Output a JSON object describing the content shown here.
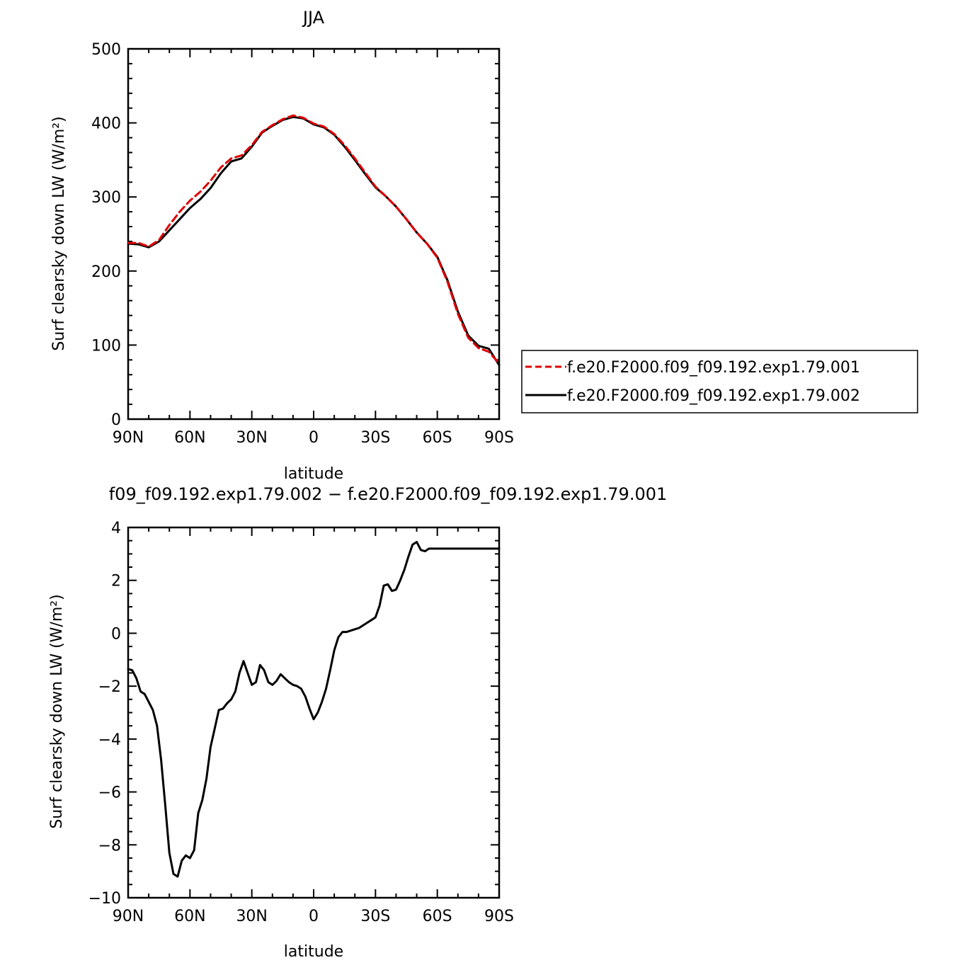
{
  "chart_data": [
    {
      "type": "line",
      "title": "JJA",
      "xlabel": "latitude",
      "ylabel": "Surf clearsky down LW (W/m²)",
      "xlim": [
        90,
        -90
      ],
      "ylim": [
        0,
        500
      ],
      "xticks": [
        90,
        60,
        30,
        0,
        -30,
        -60,
        -90
      ],
      "xtick_labels": [
        "90N",
        "60N",
        "30N",
        "0",
        "30S",
        "60S",
        "90S"
      ],
      "yticks": [
        0,
        100,
        200,
        300,
        400,
        500
      ],
      "ytick_labels": [
        "0",
        "100",
        "200",
        "300",
        "400",
        "500"
      ],
      "legend_position": "right",
      "series": [
        {
          "name": "f.e20.F2000.f09_f09.192.exp1.79.001",
          "color": "#e00000",
          "dash": "dashed",
          "x": [
            90,
            85,
            80,
            75,
            70,
            65,
            60,
            55,
            50,
            45,
            40,
            35,
            30,
            25,
            20,
            15,
            10,
            5,
            0,
            -5,
            -10,
            -15,
            -20,
            -25,
            -30,
            -35,
            -40,
            -45,
            -50,
            -55,
            -60,
            -65,
            -70,
            -75,
            -80,
            -85,
            -90
          ],
          "values": [
            238,
            238,
            233,
            242,
            262,
            280,
            295,
            307,
            322,
            340,
            352,
            356,
            370,
            388,
            397,
            405,
            410,
            407,
            399,
            395,
            385,
            370,
            352,
            333,
            314,
            301,
            287,
            270,
            252,
            237,
            218,
            185,
            142,
            110,
            96,
            91,
            75
          ]
        },
        {
          "name": "f.e20.F2000.f09_f09.192.exp1.79.002",
          "color": "#000000",
          "dash": "solid",
          "x": [
            90,
            85,
            80,
            75,
            70,
            65,
            60,
            55,
            50,
            45,
            40,
            35,
            30,
            25,
            20,
            15,
            10,
            5,
            0,
            -5,
            -10,
            -15,
            -20,
            -25,
            -30,
            -35,
            -40,
            -45,
            -50,
            -55,
            -60,
            -65,
            -70,
            -75,
            -80,
            -85,
            -90
          ],
          "values": [
            237,
            236,
            232,
            240,
            255,
            270,
            285,
            297,
            312,
            332,
            348,
            352,
            368,
            387,
            396,
            404,
            408,
            406,
            398,
            394,
            384,
            368,
            350,
            331,
            313,
            301,
            287,
            270,
            252,
            237,
            219,
            187,
            145,
            113,
            99,
            95,
            73
          ]
        }
      ]
    },
    {
      "type": "line",
      "title": "f09_f09.192.exp1.79.002 − f.e20.F2000.f09_f09.192.exp1.79.001",
      "xlabel": "latitude",
      "ylabel": "Surf clearsky down LW (W/m²)",
      "xlim": [
        90,
        -90
      ],
      "ylim": [
        -10,
        4
      ],
      "xticks": [
        90,
        60,
        30,
        0,
        -30,
        -60,
        -90
      ],
      "xtick_labels": [
        "90N",
        "60N",
        "30N",
        "0",
        "30S",
        "60S",
        "90S"
      ],
      "yticks": [
        -10,
        -8,
        -6,
        -4,
        -2,
        0,
        2,
        4
      ],
      "ytick_labels": [
        "−10",
        "−8",
        "−6",
        "−4",
        "−2",
        "0",
        "2",
        "4"
      ],
      "series": [
        {
          "color": "#000000",
          "dash": "solid",
          "x": [
            90,
            88,
            86,
            84,
            82,
            80,
            78,
            76,
            74,
            72,
            70,
            68,
            66,
            64,
            62,
            60,
            58,
            56,
            54,
            52,
            50,
            48,
            46,
            44,
            42,
            40,
            38,
            36,
            34,
            32,
            30,
            28,
            26,
            24,
            22,
            20,
            18,
            16,
            14,
            12,
            10,
            8,
            6,
            4,
            2,
            0,
            -2,
            -4,
            -6,
            -8,
            -10,
            -12,
            -14,
            -16,
            -18,
            -20,
            -22,
            -24,
            -26,
            -28,
            -30,
            -32,
            -34,
            -36,
            -38,
            -40,
            -42,
            -44,
            -46,
            -48,
            -50,
            -52,
            -54,
            -56,
            -58,
            -60,
            -62,
            -64,
            -66,
            -68,
            -70,
            -72,
            -74,
            -76,
            -78,
            -80,
            -82,
            -84,
            -86,
            -88,
            -90
          ],
          "values": [
            -1.35,
            -1.4,
            -1.7,
            -2.2,
            -2.3,
            -2.6,
            -2.9,
            -3.5,
            -4.8,
            -6.5,
            -8.3,
            -9.1,
            -9.2,
            -8.6,
            -8.4,
            -8.5,
            -8.2,
            -6.8,
            -6.3,
            -5.5,
            -4.3,
            -3.6,
            -2.9,
            -2.85,
            -2.65,
            -2.5,
            -2.2,
            -1.5,
            -1.05,
            -1.5,
            -1.95,
            -1.85,
            -1.2,
            -1.4,
            -1.85,
            -1.95,
            -1.8,
            -1.55,
            -1.7,
            -1.85,
            -1.95,
            -2.0,
            -2.1,
            -2.4,
            -2.85,
            -3.25,
            -3.0,
            -2.6,
            -2.1,
            -1.4,
            -0.65,
            -0.15,
            0.05,
            0.05,
            0.1,
            0.15,
            0.2,
            0.3,
            0.4,
            0.5,
            0.6,
            1.05,
            1.8,
            1.85,
            1.6,
            1.65,
            2.0,
            2.4,
            2.9,
            3.35,
            3.45,
            3.15,
            3.1,
            3.2,
            3.2,
            3.2,
            3.2,
            3.2,
            3.2,
            3.2,
            3.2,
            3.2,
            3.2,
            3.2,
            3.2,
            3.2,
            3.2,
            3.2,
            3.2,
            3.2,
            3.2
          ]
        }
      ]
    }
  ]
}
